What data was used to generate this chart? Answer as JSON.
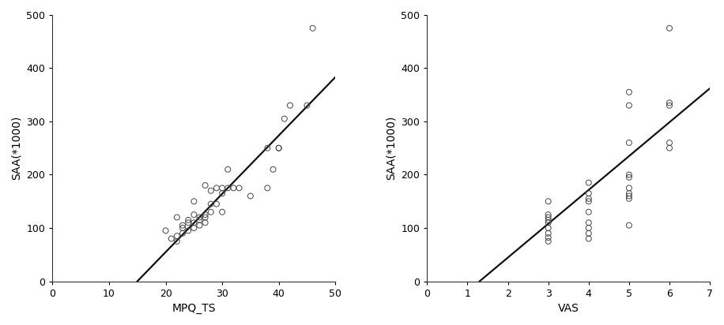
{
  "plot1": {
    "xlabel": "MPQ_TS",
    "ylabel": "SAA(*1000)",
    "xlim": [
      0,
      50
    ],
    "ylim": [
      0,
      500
    ],
    "xticks": [
      0,
      10,
      20,
      30,
      40,
      50
    ],
    "yticks": [
      0,
      100,
      200,
      300,
      400,
      500
    ],
    "scatter_x": [
      20,
      21,
      22,
      22,
      22,
      23,
      23,
      23,
      24,
      24,
      24,
      25,
      25,
      25,
      25,
      26,
      26,
      26,
      27,
      27,
      27,
      27,
      28,
      28,
      28,
      29,
      29,
      30,
      30,
      30,
      31,
      31,
      32,
      33,
      35,
      38,
      38,
      39,
      40,
      40,
      41,
      42,
      45,
      46
    ],
    "scatter_y": [
      95,
      80,
      75,
      85,
      120,
      90,
      100,
      105,
      95,
      110,
      115,
      100,
      110,
      125,
      150,
      105,
      115,
      120,
      110,
      120,
      125,
      180,
      130,
      145,
      170,
      145,
      175,
      130,
      165,
      175,
      175,
      210,
      175,
      175,
      160,
      175,
      250,
      210,
      250,
      250,
      305,
      330,
      330,
      475
    ],
    "line_x0": 15,
    "line_y0": 0,
    "line_x1": 50,
    "line_y1": 383
  },
  "plot2": {
    "xlabel": "VAS",
    "ylabel": "SAA(*1000)",
    "xlim": [
      0,
      7
    ],
    "ylim": [
      0,
      500
    ],
    "xticks": [
      0,
      1,
      2,
      3,
      4,
      5,
      6,
      7
    ],
    "yticks": [
      0,
      100,
      200,
      300,
      400,
      500
    ],
    "scatter_x": [
      3,
      3,
      3,
      3,
      3,
      3,
      3,
      3,
      3,
      4,
      4,
      4,
      4,
      4,
      4,
      4,
      4,
      4,
      5,
      5,
      5,
      5,
      5,
      5,
      5,
      5,
      5,
      5,
      6,
      6,
      6,
      6,
      6
    ],
    "scatter_y": [
      75,
      82,
      90,
      100,
      110,
      115,
      120,
      125,
      150,
      80,
      90,
      100,
      110,
      130,
      150,
      155,
      165,
      185,
      105,
      155,
      160,
      165,
      175,
      195,
      200,
      260,
      330,
      355,
      250,
      260,
      330,
      335,
      475
    ],
    "line_x0": 1.3,
    "line_y0": 0,
    "line_x1": 7,
    "line_y1": 362
  },
  "marker_style": "o",
  "marker_size": 5,
  "marker_facecolor": "none",
  "marker_edgecolor": "#444444",
  "line_color": "#111111",
  "line_width": 1.6,
  "font_size": 10,
  "tick_font_size": 9,
  "background_color": "#ffffff"
}
